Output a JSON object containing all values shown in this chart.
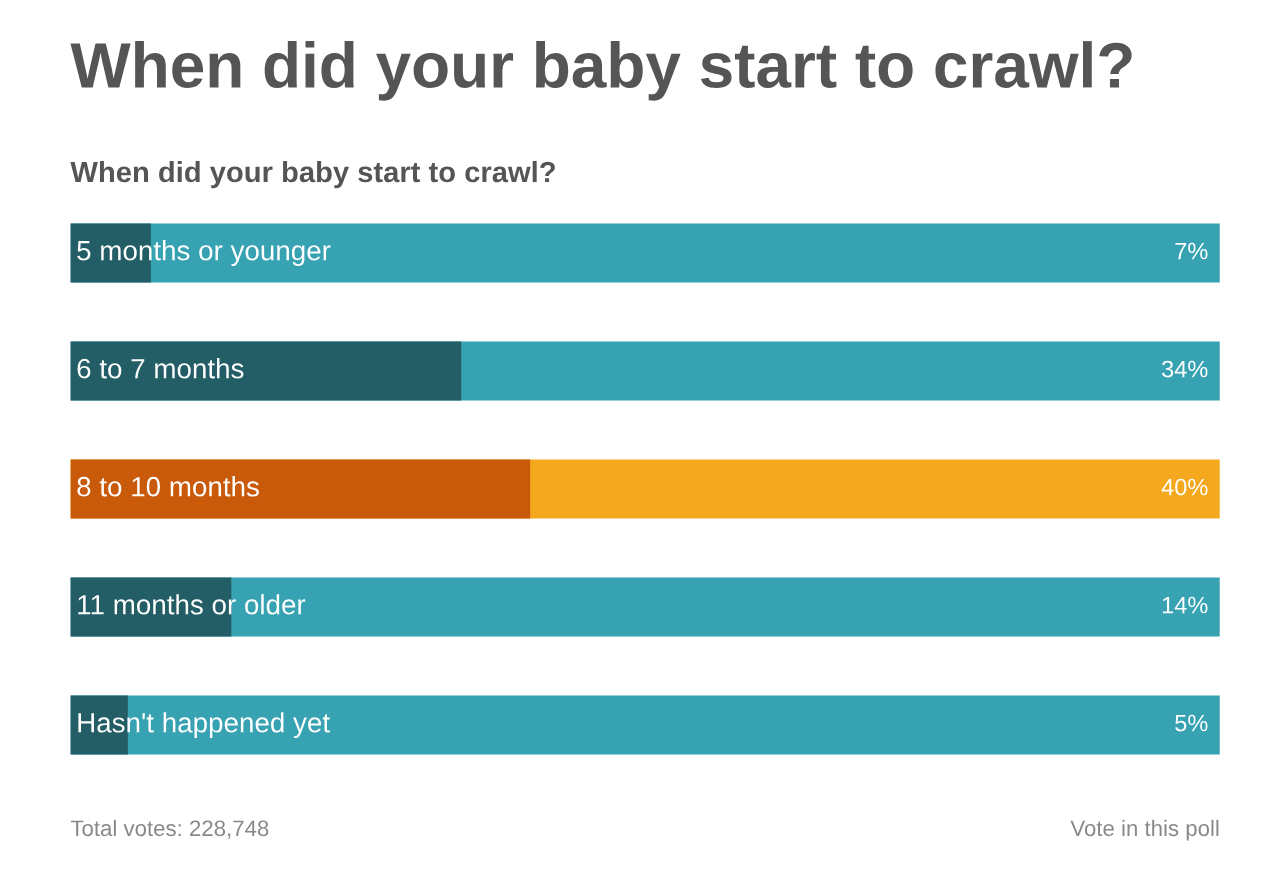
{
  "chart_data": {
    "type": "bar",
    "orientation": "horizontal",
    "title": "When did your baby start to crawl?",
    "subtitle": "When did your baby start to crawl?",
    "categories": [
      "5 months or younger",
      "6 to 7 months",
      "8 to 10 months",
      "11 months or older",
      "Hasn't happened yet"
    ],
    "series": [
      {
        "values": [
          7,
          34,
          40,
          14,
          5
        ],
        "colors": [
          "#235e66",
          "#235e66",
          "#c85a0a",
          "#235e66",
          "#235e66"
        ],
        "value_labels": [
          "7%",
          "34%",
          "40%",
          "14%",
          "5%"
        ]
      }
    ],
    "bands": [
      {
        "axis": "x",
        "from": 0,
        "to": 100,
        "color": "#36a2b2"
      },
      {
        "axis": "x",
        "from": 0,
        "to": 100,
        "color": "#36a2b2"
      },
      {
        "axis": "x",
        "from": 0,
        "to": 100,
        "color": "#f4a81d"
      },
      {
        "axis": "x",
        "from": 0,
        "to": 100,
        "color": "#36a2b2"
      },
      {
        "axis": "x",
        "from": 0,
        "to": 100,
        "color": "#36a2b2"
      }
    ],
    "xlim": [
      0,
      100
    ],
    "tick_labels": false,
    "grid": false,
    "legend": false,
    "annotations": [
      "Total votes: 228,748",
      "Vote in this poll"
    ]
  }
}
